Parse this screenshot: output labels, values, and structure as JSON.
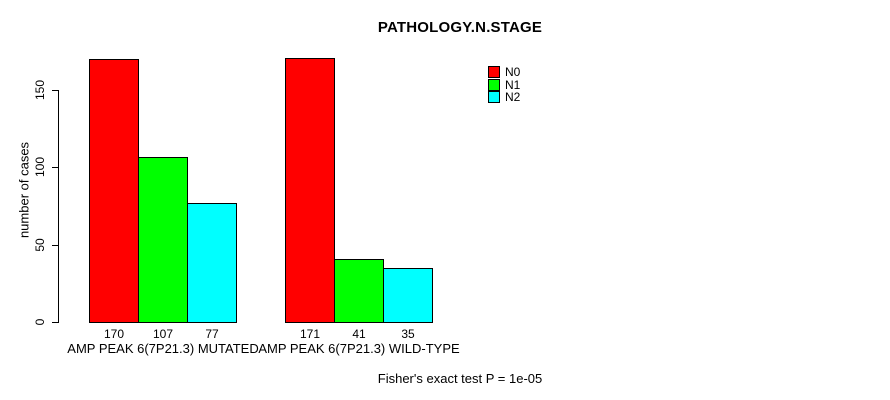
{
  "title": "PATHOLOGY.N.STAGE",
  "y_axis": {
    "label": "number of cases",
    "ticks": [
      0,
      50,
      100,
      150
    ]
  },
  "legend": {
    "items": [
      {
        "label": "N0",
        "color": "#FF0000"
      },
      {
        "label": "N1",
        "color": "#00FF00"
      },
      {
        "label": "N2",
        "color": "#00FFFF"
      }
    ]
  },
  "footer": "Fisher's exact test P = 1e-05",
  "chart_data": {
    "type": "bar",
    "title": "PATHOLOGY.N.STAGE",
    "ylabel": "number of cases",
    "ylim": [
      0,
      173
    ],
    "yticks": [
      0,
      50,
      100,
      150
    ],
    "grid": false,
    "legend_position": "top-right-inside",
    "series_names": [
      "N0",
      "N1",
      "N2"
    ],
    "series_colors": [
      "#FF0000",
      "#00FF00",
      "#00FFFF"
    ],
    "groups": [
      {
        "label": "AMP PEAK 6(7P21.3) MUTATED",
        "values": [
          170,
          107,
          77
        ]
      },
      {
        "label": "AMP PEAK 6(7P21.3) WILD-TYPE",
        "values": [
          171,
          41,
          35
        ]
      }
    ],
    "annotation": "Fisher's exact test P = 1e-05"
  }
}
